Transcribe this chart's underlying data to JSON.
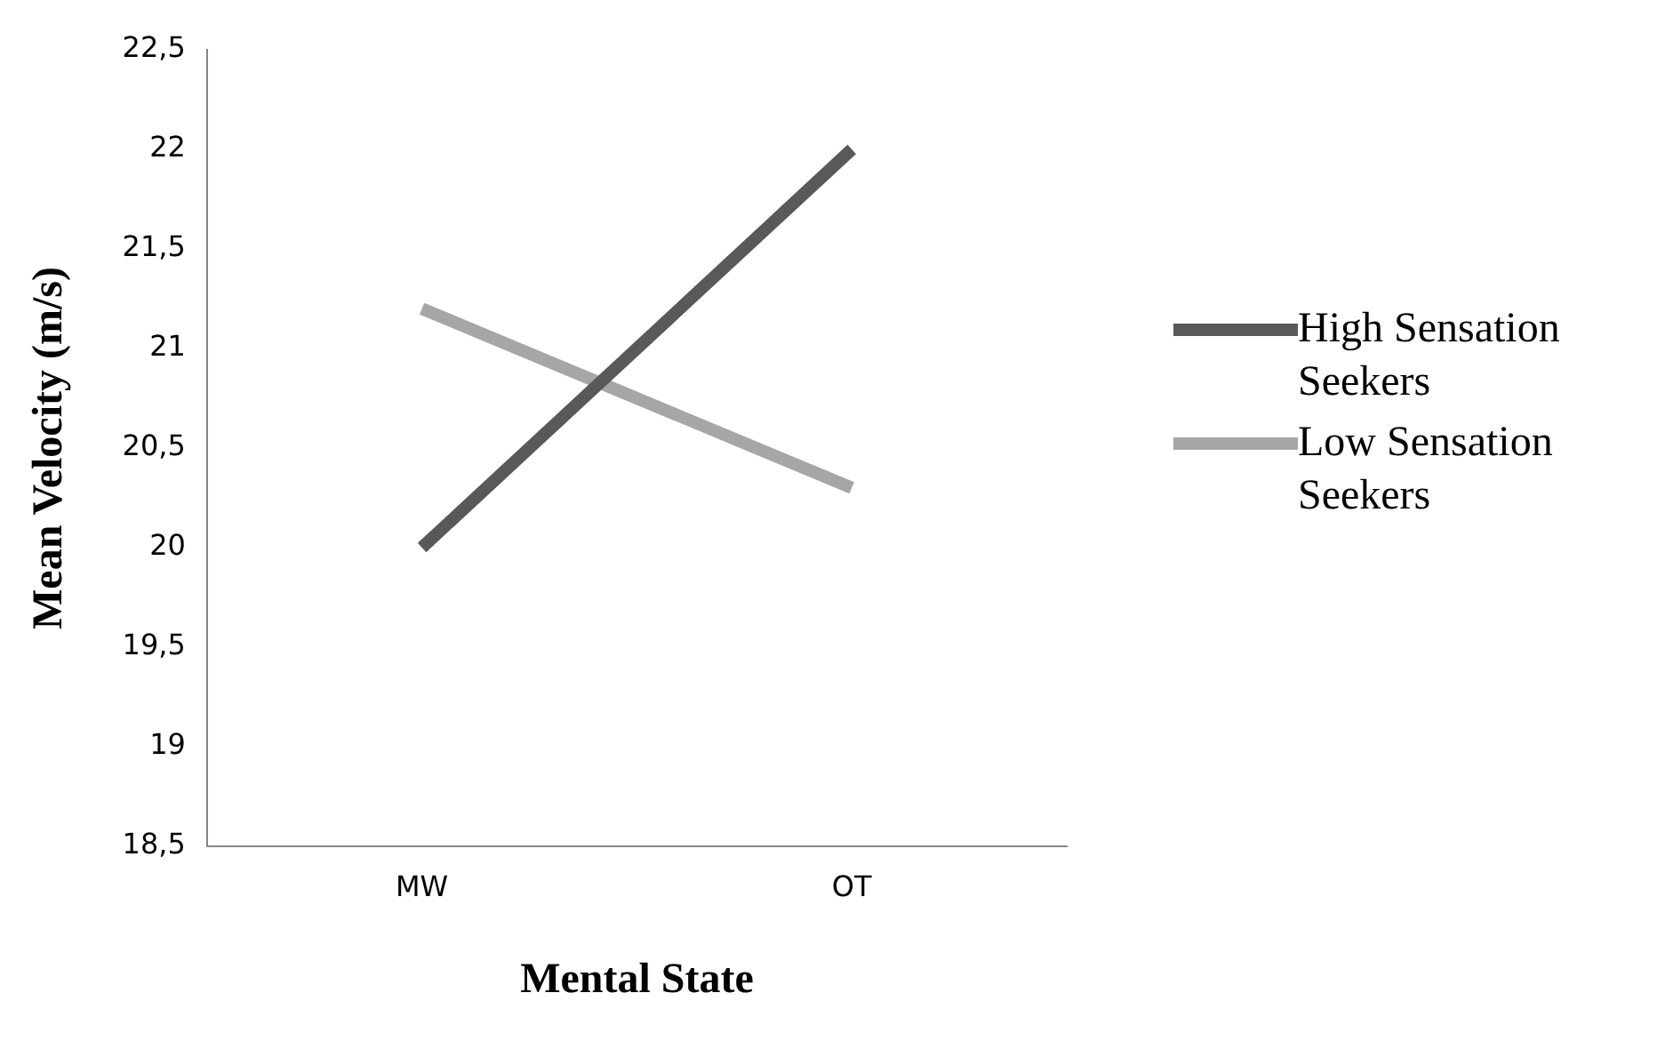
{
  "chart_data": {
    "type": "line",
    "xlabel": "Mental State",
    "ylabel": "Mean Velocity (m/s)",
    "categories": [
      "MW",
      "OT"
    ],
    "series": [
      {
        "name": "High Sensation Seekers",
        "color": "#595959",
        "values": [
          20,
          22
        ]
      },
      {
        "name": "Low Sensation Seekers",
        "color": "#a6a6a6",
        "values": [
          21.2,
          20.3
        ]
      }
    ],
    "ylim": [
      18.5,
      22.5
    ],
    "yticks": [
      {
        "value": 18.5,
        "label": "18,5"
      },
      {
        "value": 19,
        "label": "19"
      },
      {
        "value": 19.5,
        "label": "19,5"
      },
      {
        "value": 20,
        "label": "20"
      },
      {
        "value": 20.5,
        "label": "20,5"
      },
      {
        "value": 21,
        "label": "21"
      },
      {
        "value": 21.5,
        "label": "21,5"
      },
      {
        "value": 22,
        "label": "22"
      },
      {
        "value": 22.5,
        "label": "22,5"
      }
    ],
    "grid": false,
    "legend": "right",
    "marker": "none",
    "line_style": "solid"
  }
}
